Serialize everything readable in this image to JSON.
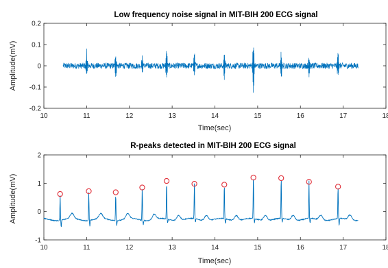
{
  "chart_data": [
    {
      "type": "line",
      "title": "Low frequency noise signal in MIT-BIH 200 ECG signal",
      "xlabel": "Time(sec)",
      "ylabel": "Amplitude(mV)",
      "xlim": [
        10,
        18
      ],
      "ylim": [
        -0.2,
        0.2
      ],
      "xticks": [
        10,
        11,
        12,
        13,
        14,
        15,
        16,
        17,
        18
      ],
      "yticks": [
        -0.2,
        -0.1,
        0,
        0.1,
        0.2
      ],
      "grid": false,
      "line_color": "#0072BD",
      "signal": {
        "x_start": 10.45,
        "x_end": 17.35,
        "noise_amplitude": 0.014,
        "spikes": [
          {
            "x": 10.4,
            "up": 0.052,
            "down": -0.04
          },
          {
            "x": 11.0,
            "up": 0.078,
            "down": -0.052
          },
          {
            "x": 11.68,
            "up": 0.082,
            "down": -0.07
          },
          {
            "x": 12.3,
            "up": 0.06,
            "down": -0.05
          },
          {
            "x": 12.87,
            "up": 0.088,
            "down": -0.075
          },
          {
            "x": 13.52,
            "up": 0.078,
            "down": -0.062
          },
          {
            "x": 14.22,
            "up": 0.075,
            "down": -0.068
          },
          {
            "x": 14.9,
            "up": 0.128,
            "down": -0.16
          },
          {
            "x": 15.55,
            "up": 0.085,
            "down": -0.07
          },
          {
            "x": 16.2,
            "up": 0.065,
            "down": -0.06
          },
          {
            "x": 16.88,
            "up": 0.075,
            "down": -0.07
          }
        ]
      }
    },
    {
      "type": "line",
      "title": "R-peaks detected in MIT-BIH 200 ECG signal",
      "xlabel": "Time(sec)",
      "ylabel": "Amplitude(mV)",
      "xlim": [
        10,
        18
      ],
      "ylim": [
        -1,
        2
      ],
      "xticks": [
        10,
        11,
        12,
        13,
        14,
        15,
        16,
        17,
        18
      ],
      "yticks": [
        -1,
        0,
        1,
        2
      ],
      "grid": false,
      "line_color": "#0072BD",
      "marker_color": "#E0303A",
      "signal": {
        "x_start": 10.0,
        "x_end": 17.35,
        "baseline": -0.28,
        "beats": [
          {
            "x": 10.38,
            "peak": 0.62,
            "trough": -0.55
          },
          {
            "x": 11.05,
            "peak": 0.72,
            "trough": -0.5
          },
          {
            "x": 11.68,
            "peak": 0.68,
            "trough": -0.45
          },
          {
            "x": 12.3,
            "peak": 0.85,
            "trough": -0.45
          },
          {
            "x": 12.87,
            "peak": 1.08,
            "trough": -0.42
          },
          {
            "x": 13.52,
            "peak": 0.98,
            "trough": -0.4
          },
          {
            "x": 14.22,
            "peak": 0.95,
            "trough": -0.45
          },
          {
            "x": 14.9,
            "peak": 1.2,
            "trough": -0.42
          },
          {
            "x": 15.55,
            "peak": 1.18,
            "trough": -0.42
          },
          {
            "x": 16.2,
            "peak": 1.05,
            "trough": -0.45
          },
          {
            "x": 16.88,
            "peak": 0.88,
            "trough": -0.55
          }
        ]
      },
      "r_peaks": {
        "x": [
          10.38,
          11.05,
          11.68,
          12.3,
          12.87,
          13.52,
          14.22,
          14.9,
          15.55,
          16.2,
          16.88
        ],
        "y": [
          0.62,
          0.72,
          0.68,
          0.85,
          1.08,
          0.98,
          0.95,
          1.2,
          1.18,
          1.05,
          0.88
        ]
      }
    }
  ]
}
